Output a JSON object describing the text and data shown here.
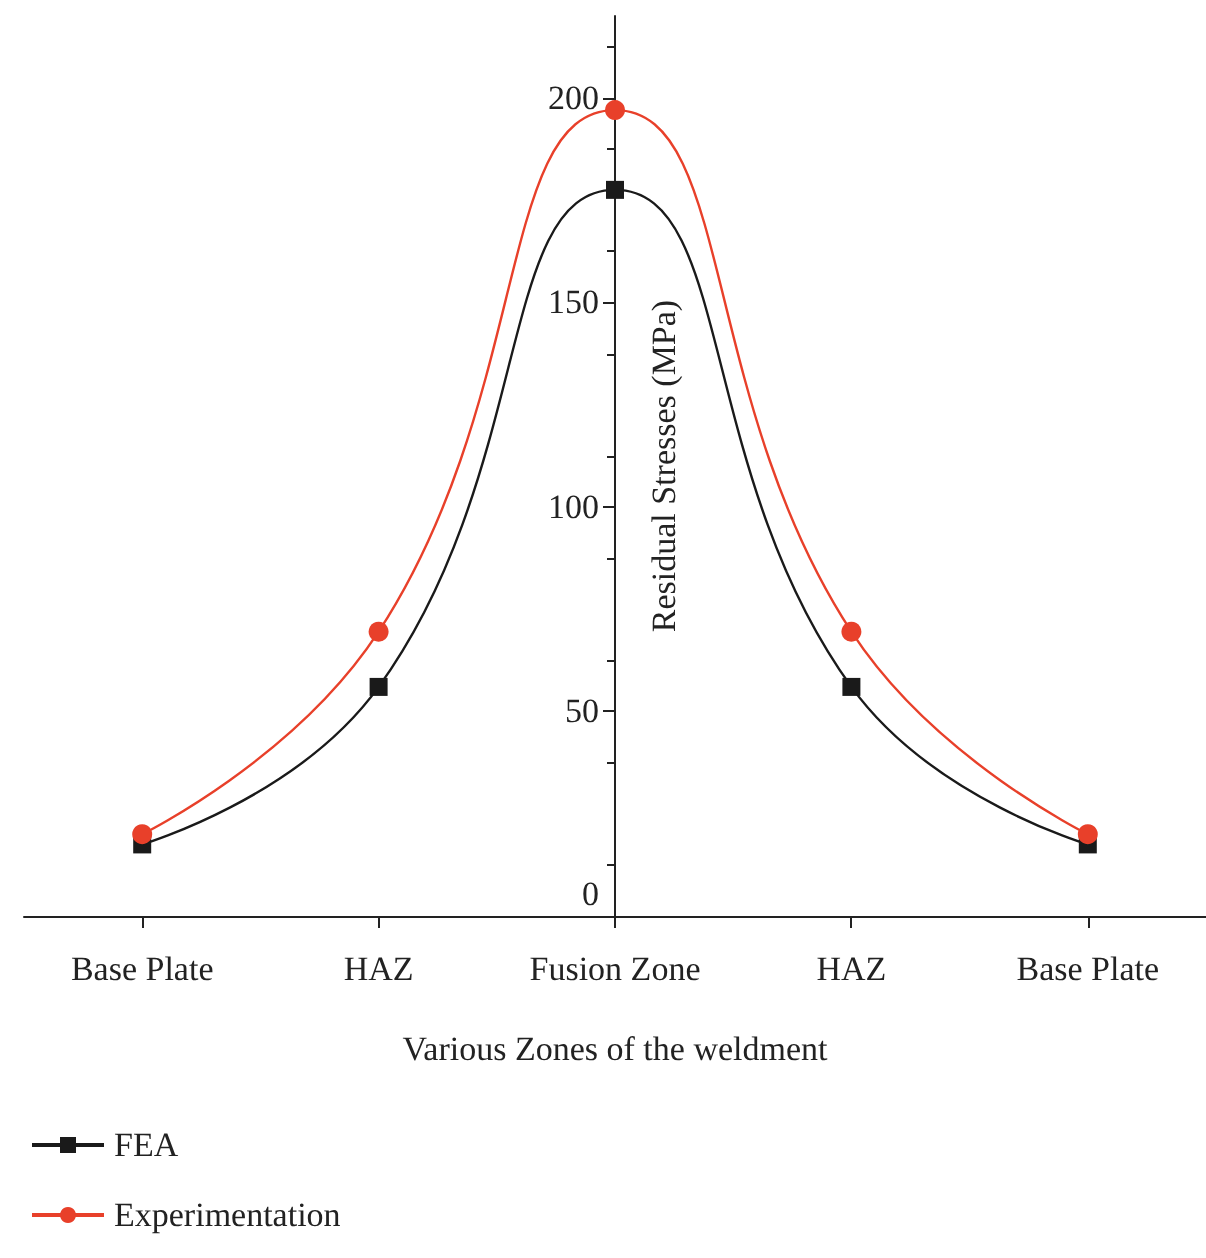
{
  "chart_data": {
    "type": "line",
    "xlabel": "Various Zones of the weldment",
    "ylabel": "Residual Stresses (MPa)",
    "categories": [
      "Base Plate",
      "HAZ",
      "Fusion Zone",
      "HAZ",
      "Base Plate"
    ],
    "series": [
      {
        "name": "FEA",
        "color": "#1a1a1a",
        "marker": "square",
        "values": [
          17.5,
          56,
          177.5,
          56,
          17.5
        ]
      },
      {
        "name": "Experimentation",
        "color": "#e8402a",
        "marker": "circle",
        "values": [
          20,
          69.5,
          197,
          69.5,
          20
        ]
      }
    ],
    "ylim": [
      0,
      220
    ],
    "yticks": [
      0,
      50,
      100,
      150,
      200
    ],
    "grid": false,
    "legend": "bottom left",
    "line_style": "solid"
  }
}
